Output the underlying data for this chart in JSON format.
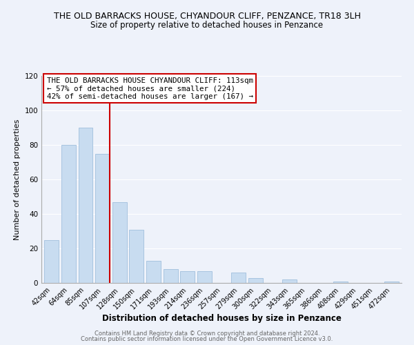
{
  "title": "THE OLD BARRACKS HOUSE, CHYANDOUR CLIFF, PENZANCE, TR18 3LH",
  "subtitle": "Size of property relative to detached houses in Penzance",
  "xlabel": "Distribution of detached houses by size in Penzance",
  "ylabel": "Number of detached properties",
  "bar_labels": [
    "42sqm",
    "64sqm",
    "85sqm",
    "107sqm",
    "128sqm",
    "150sqm",
    "171sqm",
    "193sqm",
    "214sqm",
    "236sqm",
    "257sqm",
    "279sqm",
    "300sqm",
    "322sqm",
    "343sqm",
    "365sqm",
    "386sqm",
    "408sqm",
    "429sqm",
    "451sqm",
    "472sqm"
  ],
  "bar_values": [
    25,
    80,
    90,
    75,
    47,
    31,
    13,
    8,
    7,
    7,
    0,
    6,
    3,
    0,
    2,
    0,
    0,
    1,
    0,
    0,
    1
  ],
  "bar_color": "#c8dcf0",
  "bar_edge_color": "#a8c4e0",
  "property_line_label": "THE OLD BARRACKS HOUSE CHYANDOUR CLIFF: 113sqm",
  "annotation_line1": "← 57% of detached houses are smaller (224)",
  "annotation_line2": "42% of semi-detached houses are larger (167) →",
  "annotation_box_color": "#ffffff",
  "annotation_box_edge": "#cc0000",
  "property_line_color": "#cc0000",
  "ylim": [
    0,
    120
  ],
  "yticks": [
    0,
    20,
    40,
    60,
    80,
    100,
    120
  ],
  "footer1": "Contains HM Land Registry data © Crown copyright and database right 2024.",
  "footer2": "Contains public sector information licensed under the Open Government Licence v3.0.",
  "background_color": "#eef2fa",
  "grid_color": "#ffffff",
  "title_fontsize": 9,
  "subtitle_fontsize": 8.5,
  "axis_label_fontsize": 8,
  "tick_fontsize": 7,
  "footer_fontsize": 6
}
